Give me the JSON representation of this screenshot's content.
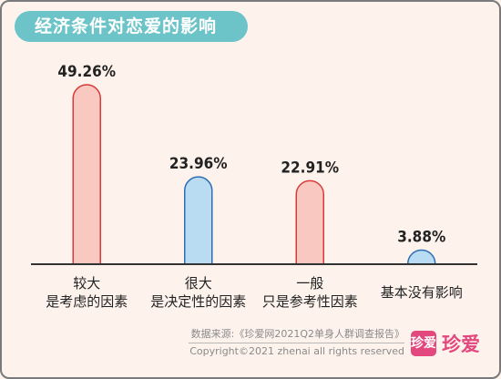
{
  "title": "经济条件对恋爱的影响",
  "chart_data": {
    "type": "bar",
    "categories": [
      [
        "较大",
        "是考虑的因素"
      ],
      [
        "很大",
        "是决定性的因素"
      ],
      [
        "一般",
        "只是参考性因素"
      ],
      [
        "基本没有影响"
      ]
    ],
    "values": [
      49.26,
      23.96,
      22.91,
      3.88
    ],
    "value_labels": [
      "49.26%",
      "23.96%",
      "22.91%",
      "3.88%"
    ],
    "ylim": [
      0,
      52
    ],
    "grid": false,
    "bar_fill": [
      "#f8c8c1",
      "#b9dcf2",
      "#f8c8c1",
      "#b9dcf2"
    ],
    "bar_stroke": [
      "#d83a3a",
      "#2f6eb5",
      "#d83a3a",
      "#2f6eb5"
    ]
  },
  "footer": {
    "source": "数据来源:《珍爱网2021Q2单身人群调查报告》",
    "copyright": "Copyright©2021  zhenai  all rights reserved",
    "logo_badge": "珍爱",
    "logo_text": "珍爱"
  },
  "colors": {
    "background": "#fdf3ec",
    "title_pill": "#6cc4c8",
    "axis": "#333333",
    "brand": "#e2477d"
  }
}
